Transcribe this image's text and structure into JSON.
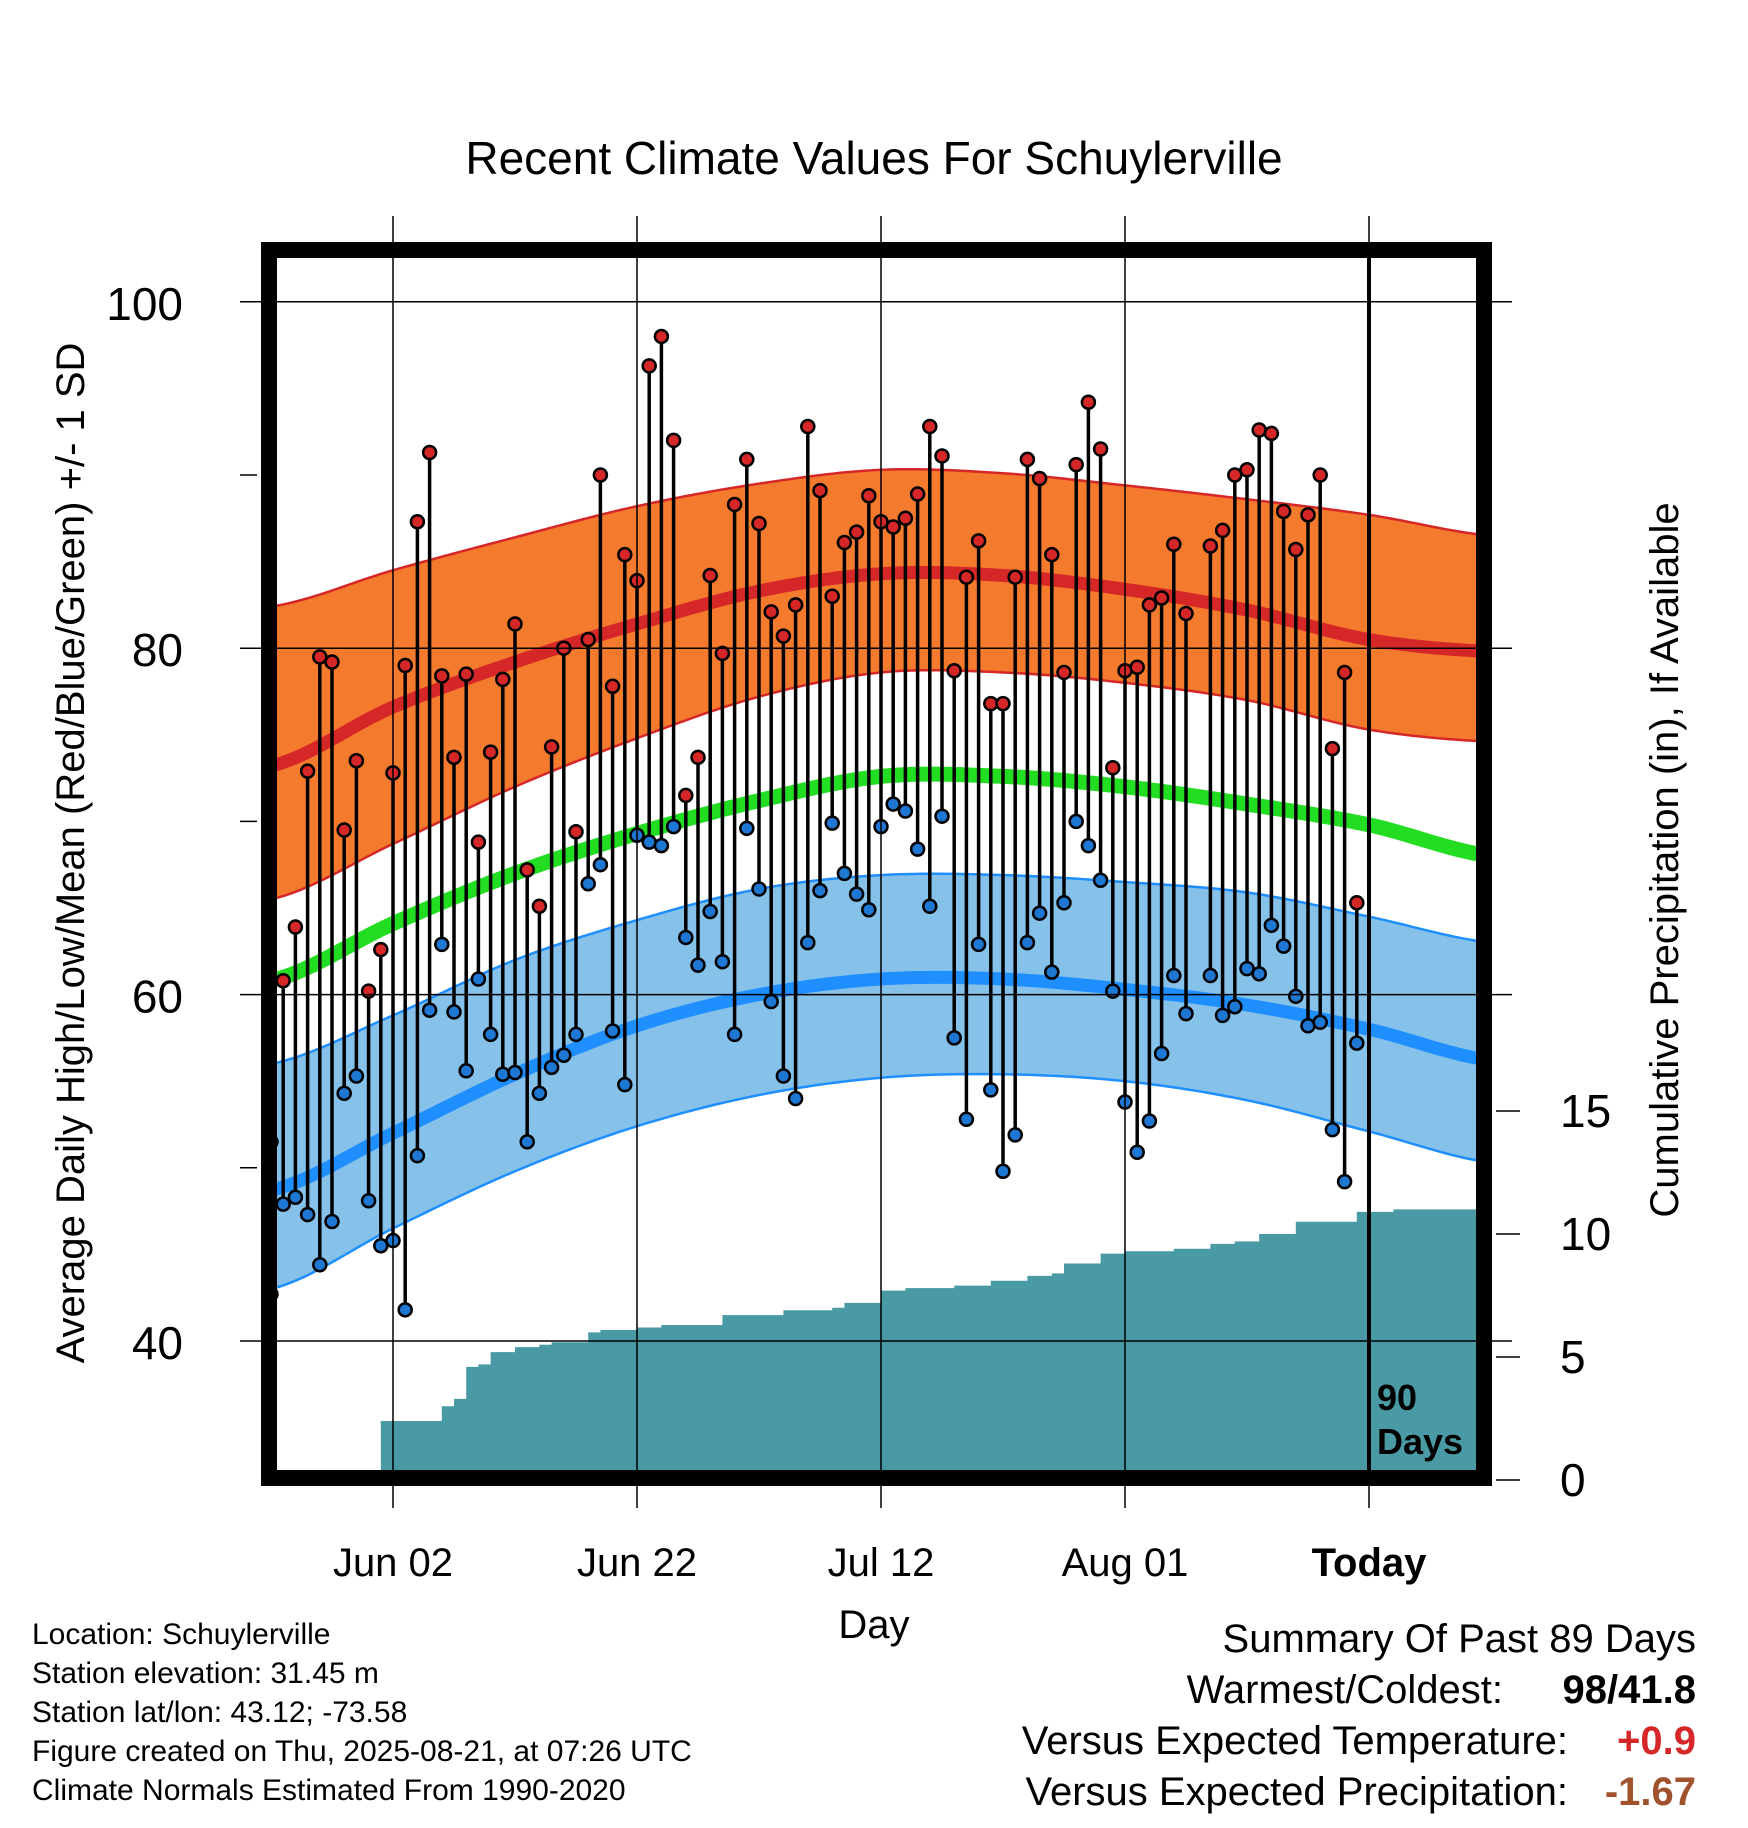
{
  "chart_data": {
    "type": "line",
    "title": "Recent Climate Values For Schuylerville",
    "xlabel": "Day",
    "ylabel": "Average Daily High/Low/Mean (Red/Blue/Green) +/- 1 SD",
    "y2label": "Cumulative Precipitation (in), If Available",
    "x_tick_labels": [
      "Jun 02",
      "Jun 22",
      "Jul 12",
      "Aug 01",
      "Today"
    ],
    "x_range_days": [
      -80,
      10
    ],
    "x_tick_days": [
      -80,
      -60,
      -40,
      -20,
      0
    ],
    "ylim": [
      32.4,
      104
    ],
    "y_ticks": [
      40,
      60,
      80,
      100
    ],
    "y2lim": [
      0,
      32
    ],
    "y2_ticks": [
      0,
      5,
      10,
      15
    ],
    "grid": true,
    "today_marker_label": "90\nDays",
    "colors": {
      "high_band": "#f47a2e",
      "high_line": "#d62728",
      "mean_line": "#22dd22",
      "low_band": "#85c1e9",
      "low_line": "#1f8fff",
      "precip": "#4a9aa5",
      "high_marker": "#d62728",
      "low_marker": "#1f77d4"
    },
    "normals": {
      "days": [
        -90,
        -80,
        -70,
        -60,
        -50,
        -40,
        -30,
        -20,
        -10,
        0,
        10
      ],
      "high_mean": [
        73.2,
        76.6,
        79.2,
        81.4,
        83.3,
        84.3,
        84.2,
        83.4,
        82.2,
        80.5,
        79.8
      ],
      "high_upper": [
        82.4,
        84.5,
        86.4,
        88.2,
        89.5,
        90.3,
        90.1,
        89.4,
        88.6,
        87.7,
        86.5
      ],
      "high_lower": [
        65.5,
        68.7,
        72.0,
        74.8,
        77.2,
        78.6,
        78.6,
        78.0,
        77.0,
        75.3,
        74.6
      ],
      "mean": [
        60.8,
        64.1,
        67.0,
        69.3,
        71.2,
        72.6,
        72.6,
        72.0,
        71.0,
        69.8,
        68.0
      ],
      "low_mean": [
        48.7,
        52.0,
        55.4,
        58.2,
        60.0,
        60.9,
        60.9,
        60.3,
        59.4,
        58.0,
        56.2
      ],
      "low_upper": [
        56.0,
        58.8,
        62.0,
        64.3,
        66.1,
        66.9,
        66.9,
        66.5,
        65.9,
        64.5,
        63.0
      ],
      "low_lower": [
        43.0,
        46.5,
        49.8,
        52.4,
        54.2,
        55.2,
        55.4,
        55.0,
        53.9,
        52.1,
        50.3
      ]
    },
    "series": [
      {
        "name": "High",
        "days": [
          -90,
          -89,
          -88,
          -87,
          -86,
          -85,
          -84,
          -83,
          -82,
          -81,
          -80,
          -79,
          -78,
          -77,
          -76,
          -75,
          -74,
          -73,
          -72,
          -71,
          -70,
          -69,
          -68,
          -67,
          -66,
          -65,
          -64,
          -63,
          -62,
          -61,
          -60,
          -59,
          -58,
          -57,
          -56,
          -55,
          -54,
          -53,
          -52,
          -51,
          -50,
          -49,
          -48,
          -47,
          -46,
          -45,
          -44,
          -43,
          -42,
          -41,
          -40,
          -39,
          -38,
          -37,
          -36,
          -35,
          -34,
          -33,
          -32,
          -31,
          -30,
          -29,
          -28,
          -27,
          -26,
          -25,
          -24,
          -23,
          -22,
          -21,
          -20,
          -19,
          -18,
          -17,
          -16,
          -15,
          -14,
          -13,
          -12,
          -11,
          -10,
          -9,
          -8,
          -7,
          -6,
          -5,
          -4,
          -3,
          -2,
          -1
        ],
        "values": [
          51.5,
          60.8,
          63.9,
          72.9,
          79.5,
          79.2,
          69.5,
          73.5,
          60.2,
          62.6,
          72.8,
          79.0,
          87.3,
          91.3,
          78.4,
          73.7,
          78.5,
          68.8,
          74.0,
          78.2,
          81.4,
          67.2,
          65.1,
          74.3,
          80.0,
          69.4,
          80.5,
          90.0,
          77.8,
          85.4,
          83.9,
          96.3,
          98.0,
          92.0,
          71.5,
          73.7,
          84.2,
          79.7,
          88.3,
          90.9,
          87.2,
          82.1,
          80.7,
          82.5,
          92.8,
          89.1,
          83.0,
          86.1,
          86.7,
          88.8,
          87.3,
          87.0,
          87.5,
          88.9,
          92.8,
          91.1,
          78.7,
          84.1,
          86.2,
          76.8,
          76.8,
          84.1,
          90.9,
          89.8,
          85.4,
          78.6,
          90.6,
          94.2,
          91.5,
          73.1,
          78.7,
          78.9,
          82.5,
          82.9,
          86.0,
          82.0,
          null,
          85.9,
          86.8,
          90.0,
          90.3,
          92.6,
          92.4,
          87.9,
          85.7,
          87.7,
          90.0,
          74.2,
          78.6,
          65.3
        ]
      },
      {
        "name": "Low",
        "days": [
          -90,
          -89,
          -88,
          -87,
          -86,
          -85,
          -84,
          -83,
          -82,
          -81,
          -80,
          -79,
          -78,
          -77,
          -76,
          -75,
          -74,
          -73,
          -72,
          -71,
          -70,
          -69,
          -68,
          -67,
          -66,
          -65,
          -64,
          -63,
          -62,
          -61,
          -60,
          -59,
          -58,
          -57,
          -56,
          -55,
          -54,
          -53,
          -52,
          -51,
          -50,
          -49,
          -48,
          -47,
          -46,
          -45,
          -44,
          -43,
          -42,
          -41,
          -40,
          -39,
          -38,
          -37,
          -36,
          -35,
          -34,
          -33,
          -32,
          -31,
          -30,
          -29,
          -28,
          -27,
          -26,
          -25,
          -24,
          -23,
          -22,
          -21,
          -20,
          -19,
          -18,
          -17,
          -16,
          -15,
          -14,
          -13,
          -12,
          -11,
          -10,
          -9,
          -8,
          -7,
          -6,
          -5,
          -4,
          -3,
          -2,
          -1
        ],
        "values": [
          42.7,
          47.9,
          48.3,
          47.3,
          44.4,
          46.9,
          54.3,
          55.3,
          48.1,
          45.5,
          45.8,
          41.8,
          50.7,
          59.1,
          62.9,
          59.0,
          55.6,
          60.9,
          57.7,
          55.4,
          55.5,
          51.5,
          54.3,
          55.8,
          56.5,
          57.7,
          66.4,
          67.5,
          57.9,
          54.8,
          69.2,
          68.8,
          68.6,
          69.7,
          63.3,
          61.7,
          64.8,
          61.9,
          57.7,
          69.6,
          66.1,
          59.6,
          55.3,
          54.0,
          63.0,
          66.0,
          69.9,
          67.0,
          65.8,
          64.9,
          69.7,
          71.0,
          70.6,
          68.4,
          65.1,
          70.3,
          57.5,
          52.8,
          62.9,
          54.5,
          49.8,
          51.9,
          63.0,
          64.7,
          61.3,
          65.3,
          70.0,
          68.6,
          66.6,
          60.2,
          53.8,
          50.9,
          52.7,
          56.6,
          61.1,
          58.9,
          null,
          61.1,
          58.8,
          59.3,
          61.5,
          61.2,
          64.0,
          62.8,
          59.9,
          58.2,
          58.4,
          52.2,
          49.2,
          57.2
        ]
      }
    ],
    "precipitation_cumulative": {
      "days": [
        -90,
        -87,
        -85,
        -83,
        -82,
        -81,
        -80,
        -79,
        -78,
        -77,
        -76,
        -75,
        -74,
        -73,
        -72,
        -71,
        -70,
        -69,
        -68,
        -67,
        -66,
        -64,
        -63,
        -61,
        -60,
        -58,
        -56,
        -55,
        -53,
        -51,
        -50,
        -48,
        -47,
        -45,
        -44,
        -43,
        -42,
        -41,
        -40,
        -39,
        -38,
        -37,
        -36,
        -34,
        -33,
        -31,
        -30,
        -28,
        -26,
        -25,
        -24,
        -22,
        -21,
        -20,
        -19,
        -17,
        -16,
        -14,
        -13,
        -11,
        -10,
        -9,
        -8,
        -7,
        -6,
        -4,
        -2,
        -1,
        0,
        2,
        5,
        9
      ],
      "values": [
        0,
        0,
        0,
        0,
        0,
        2.4,
        2.4,
        2.4,
        2.4,
        2.4,
        3.0,
        3.3,
        4.6,
        4.7,
        5.2,
        5.2,
        5.4,
        5.4,
        5.5,
        5.6,
        5.6,
        6.0,
        6.1,
        6.1,
        6.2,
        6.3,
        6.3,
        6.3,
        6.7,
        6.7,
        6.7,
        6.9,
        6.9,
        6.9,
        7.0,
        7.2,
        7.2,
        7.2,
        7.7,
        7.7,
        7.8,
        7.8,
        7.8,
        7.9,
        7.9,
        8.1,
        8.1,
        8.3,
        8.4,
        8.8,
        8.8,
        9.2,
        9.2,
        9.3,
        9.3,
        9.3,
        9.4,
        9.4,
        9.6,
        9.7,
        9.7,
        10.0,
        10.0,
        10.0,
        10.5,
        10.5,
        10.5,
        10.9,
        10.9,
        11.0,
        11.0,
        11.0
      ]
    }
  },
  "footer": {
    "location": "Location: Schuylerville",
    "elevation": "Station elevation: 31.45 m",
    "latlon": "Station lat/lon: 43.12; -73.58",
    "created": "Figure created on Thu, 2025-08-21, at 07:26 UTC",
    "normals": "Climate Normals Estimated From 1990-2020"
  },
  "summary": {
    "title": "Summary Of Past 89 Days",
    "warm_cold_label": "Warmest/Coldest:",
    "warmest": "98",
    "slash": "/",
    "coldest": "41.8",
    "temp_label": "Versus Expected Temperature:",
    "temp_value": "+0.9",
    "temp_color": "#d62728",
    "precip_label": "Versus Expected Precipitation:",
    "precip_value": "-1.67",
    "precip_color": "#a0522d"
  }
}
